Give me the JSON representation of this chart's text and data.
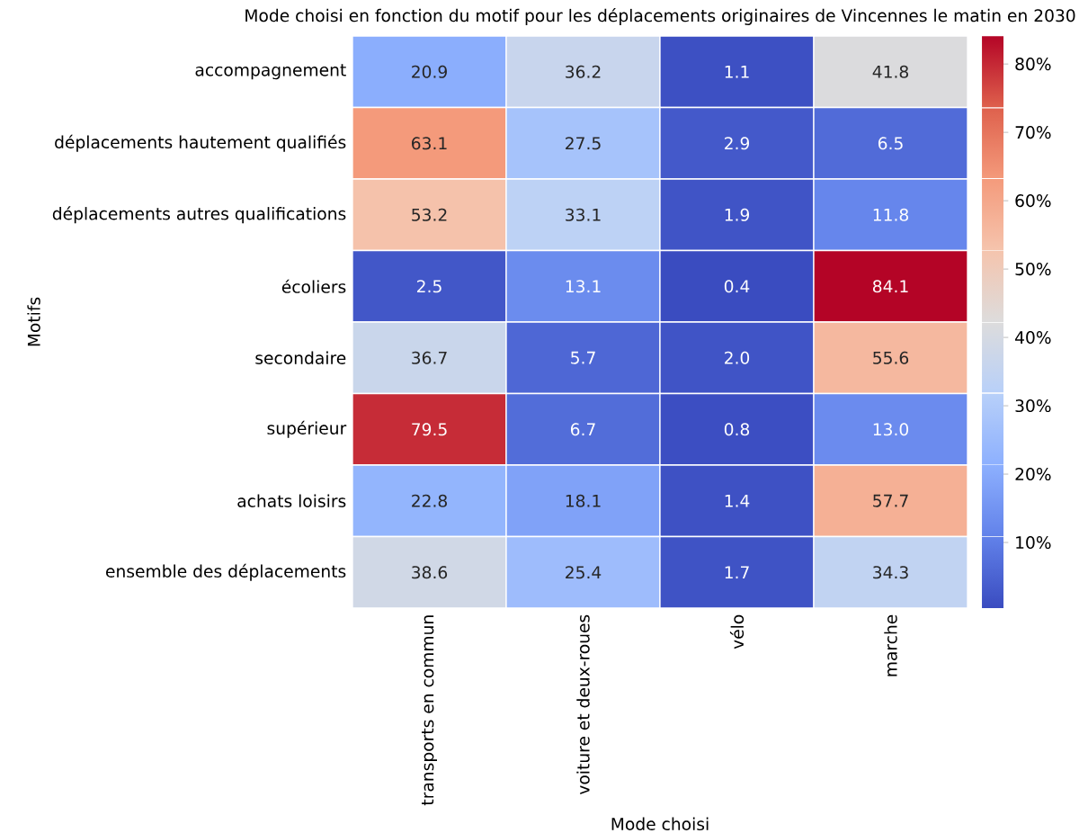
{
  "chart_data": {
    "type": "heatmap",
    "title": "Mode choisi en fonction du motif pour les déplacements originaires de Vincennes le matin en 2030",
    "xlabel": "Mode choisi",
    "ylabel": "Motifs",
    "categories": [
      "transports en commun",
      "voiture et deux-roues",
      "vélo",
      "marche"
    ],
    "y_categories": [
      "accompagnement",
      "déplacements hautement qualifiés",
      "déplacements autres qualifications",
      "écoliers",
      "secondaire",
      "supérieur",
      "achats loisirs",
      "ensemble des déplacements"
    ],
    "cells": [
      [
        20.9,
        36.2,
        1.1,
        41.8
      ],
      [
        63.1,
        27.5,
        2.9,
        6.5
      ],
      [
        53.2,
        33.1,
        1.9,
        11.8
      ],
      [
        2.5,
        13.1,
        0.4,
        84.1
      ],
      [
        36.7,
        5.7,
        2.0,
        55.6
      ],
      [
        79.5,
        6.7,
        0.8,
        13.0
      ],
      [
        22.8,
        18.1,
        1.4,
        57.7
      ],
      [
        38.6,
        25.4,
        1.7,
        34.3
      ]
    ],
    "cell_labels": [
      [
        "20.9",
        "36.2",
        "1.1",
        "41.8"
      ],
      [
        "63.1",
        "27.5",
        "2.9",
        "6.5"
      ],
      [
        "53.2",
        "33.1",
        "1.9",
        "11.8"
      ],
      [
        "2.5",
        "13.1",
        "0.4",
        "84.1"
      ],
      [
        "36.7",
        "5.7",
        "2.0",
        "55.6"
      ],
      [
        "79.5",
        "6.7",
        "0.8",
        "13.0"
      ],
      [
        "22.8",
        "18.1",
        "1.4",
        "57.7"
      ],
      [
        "38.6",
        "25.4",
        "1.7",
        "34.3"
      ]
    ],
    "data_labels": true,
    "clim": [
      0.4,
      84.1
    ],
    "cticks": [
      {
        "value": 10,
        "label": "10%"
      },
      {
        "value": 20,
        "label": "20%"
      },
      {
        "value": 30,
        "label": "30%"
      },
      {
        "value": 40,
        "label": "40%"
      },
      {
        "value": 50,
        "label": "50%"
      },
      {
        "value": 60,
        "label": "60%"
      },
      {
        "value": 70,
        "label": "70%"
      },
      {
        "value": 80,
        "label": "80%"
      }
    ]
  }
}
